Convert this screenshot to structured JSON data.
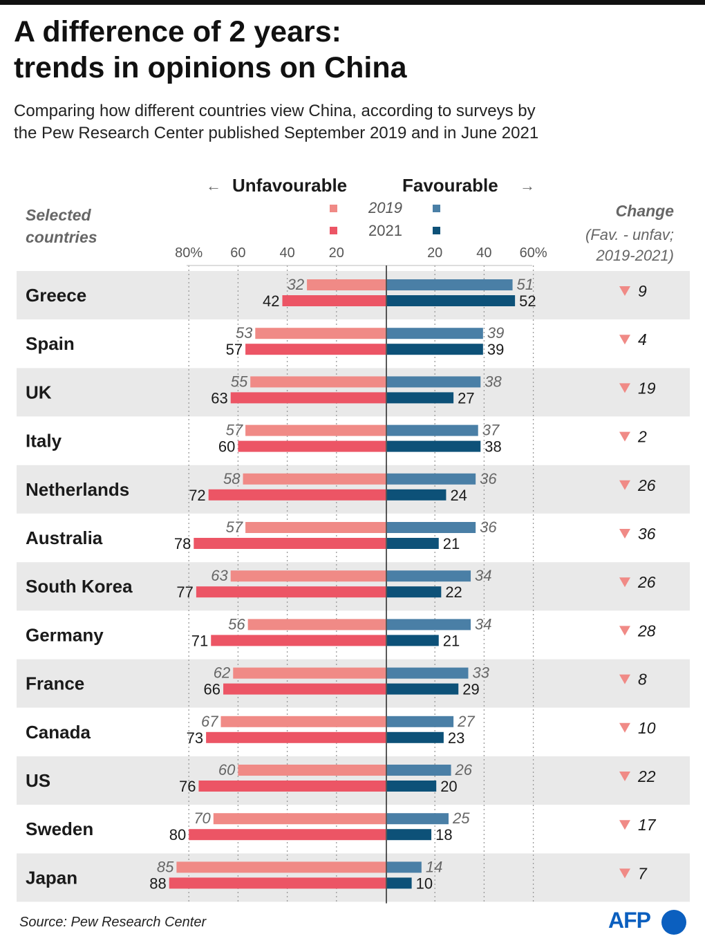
{
  "title_line1": "A difference of 2 years:",
  "title_line2": "trends in opinions on China",
  "subtitle_line1": "Comparing how different countries view China, according to surveys by",
  "subtitle_line2": "the Pew Research Center published September 2019 and in June 2021",
  "header": {
    "unfavourable": "Unfavourable",
    "favourable": "Favourable",
    "left_arrow": "←",
    "right_arrow": "→",
    "year_2019": "2019",
    "year_2021": "2021",
    "selected_line1": "Selected",
    "selected_line2": "countries",
    "change_title": "Change",
    "change_sub_line1": "(Fav. - unfav;",
    "change_sub_line2": "2019-2021)"
  },
  "source": "Source: Pew Research Center",
  "logo": "AFP",
  "colors": {
    "unfav_2019": "#f08a86",
    "unfav_2021": "#ec5565",
    "fav_2019": "#4a7fa6",
    "fav_2021": "#0d5178",
    "row_band": "#e9e9e9",
    "change_arrow": "#f08a86"
  },
  "chart_data": {
    "type": "bar",
    "orientation": "diverging-horizontal",
    "left_ticks": [
      "80%",
      "60",
      "40",
      "20"
    ],
    "right_ticks": [
      "20",
      "40",
      "60%"
    ],
    "left_tick_values": [
      80,
      60,
      40,
      20
    ],
    "right_tick_values": [
      20,
      40,
      60
    ],
    "xlim_left": [
      0,
      80
    ],
    "xlim_right": [
      0,
      60
    ],
    "countries": [
      {
        "name": "Greece",
        "unfav_2019": 32,
        "unfav_2021": 42,
        "fav_2019": 51,
        "fav_2021": 52,
        "change": "9"
      },
      {
        "name": "Spain",
        "unfav_2019": 53,
        "unfav_2021": 57,
        "fav_2019": 39,
        "fav_2021": 39,
        "change": "4"
      },
      {
        "name": "UK",
        "unfav_2019": 55,
        "unfav_2021": 63,
        "fav_2019": 38,
        "fav_2021": 27,
        "change": "19"
      },
      {
        "name": "Italy",
        "unfav_2019": 57,
        "unfav_2021": 60,
        "fav_2019": 37,
        "fav_2021": 38,
        "change": "2"
      },
      {
        "name": "Netherlands",
        "unfav_2019": 58,
        "unfav_2021": 72,
        "fav_2019": 36,
        "fav_2021": 24,
        "change": "26"
      },
      {
        "name": "Australia",
        "unfav_2019": 57,
        "unfav_2021": 78,
        "fav_2019": 36,
        "fav_2021": 21,
        "change": "36"
      },
      {
        "name": "South Korea",
        "unfav_2019": 63,
        "unfav_2021": 77,
        "fav_2019": 34,
        "fav_2021": 22,
        "change": "26"
      },
      {
        "name": "Germany",
        "unfav_2019": 56,
        "unfav_2021": 71,
        "fav_2019": 34,
        "fav_2021": 21,
        "change": "28"
      },
      {
        "name": "France",
        "unfav_2019": 62,
        "unfav_2021": 66,
        "fav_2019": 33,
        "fav_2021": 29,
        "change": "8"
      },
      {
        "name": "Canada",
        "unfav_2019": 67,
        "unfav_2021": 73,
        "fav_2019": 27,
        "fav_2021": 23,
        "change": "10"
      },
      {
        "name": "US",
        "unfav_2019": 60,
        "unfav_2021": 76,
        "fav_2019": 26,
        "fav_2021": 20,
        "change": "22"
      },
      {
        "name": "Sweden",
        "unfav_2019": 70,
        "unfav_2021": 80,
        "fav_2019": 25,
        "fav_2021": 18,
        "change": "17"
      },
      {
        "name": "Japan",
        "unfav_2019": 85,
        "unfav_2021": 88,
        "fav_2019": 14,
        "fav_2021": 10,
        "change": "7"
      }
    ]
  }
}
